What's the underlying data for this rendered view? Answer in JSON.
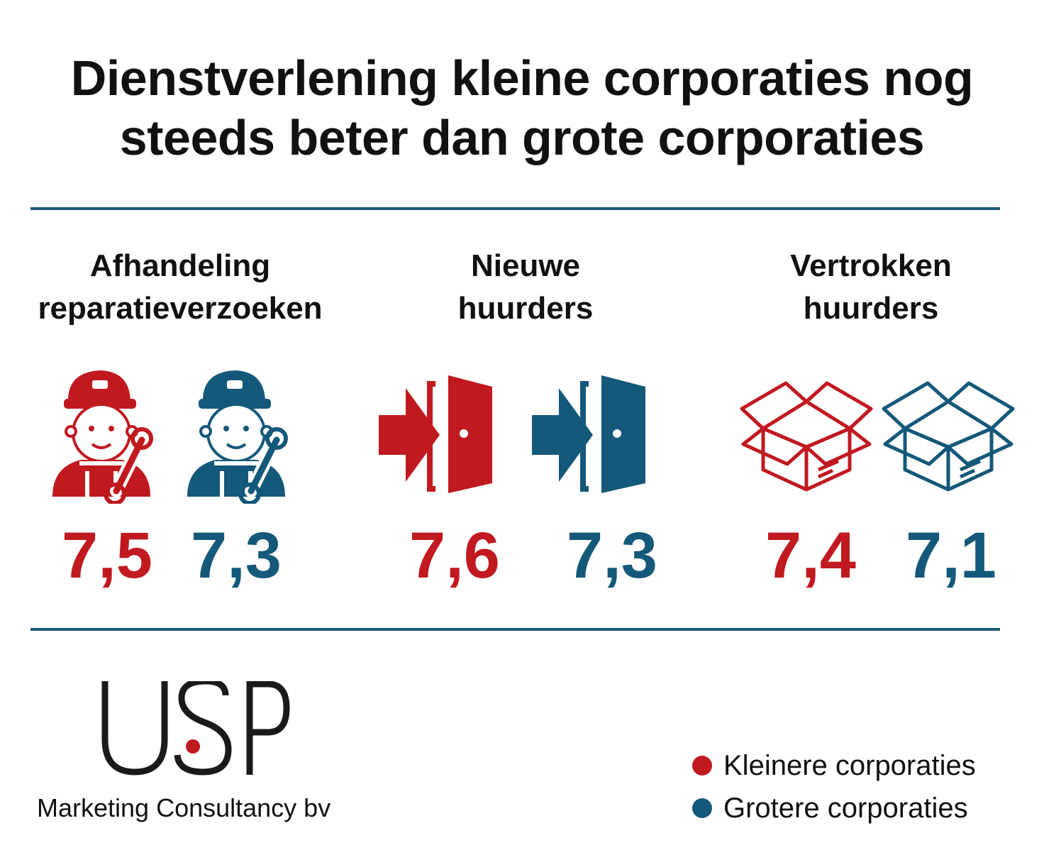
{
  "title": {
    "line1": "Dienstverlening kleine corporaties nog",
    "line2": "steeds beter dan grote corporaties"
  },
  "colors": {
    "small": "#c0191f",
    "large": "#14587a",
    "rule": "#1a5a76"
  },
  "chart_data": {
    "type": "table",
    "categories": [
      "Afhandeling reparatieverzoeken",
      "Nieuwe huurders",
      "Vertrokken huurders"
    ],
    "series": [
      {
        "name": "Kleinere corporaties",
        "color": "#c0191f",
        "values": [
          7.5,
          7.6,
          7.4
        ]
      },
      {
        "name": "Grotere corporaties",
        "color": "#14587a",
        "values": [
          7.3,
          7.3,
          7.1
        ]
      }
    ]
  },
  "groups": [
    {
      "line1": "Afhandeling",
      "line2": "reparatieverzoeken",
      "icon": "repairman-icon",
      "small": "7,5",
      "large": "7,3"
    },
    {
      "line1": "Nieuwe",
      "line2": "huurders",
      "icon": "door-enter-icon",
      "small": "7,6",
      "large": "7,3"
    },
    {
      "line1": "Vertrokken",
      "line2": "huurders",
      "icon": "open-box-icon",
      "small": "7,4",
      "large": "7,1"
    }
  ],
  "logo": {
    "text": "USP",
    "subtitle": "Marketing Consultancy bv"
  },
  "legend": {
    "small": "Kleinere corporaties",
    "large": "Grotere corporaties"
  }
}
